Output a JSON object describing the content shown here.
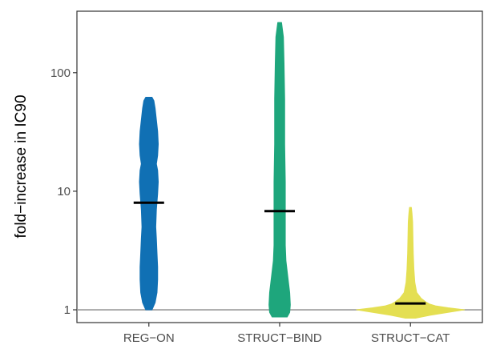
{
  "chart_data": {
    "type": "violin",
    "title": "",
    "xlabel": "",
    "ylabel": "fold−increase in IC90",
    "y_scale": "log10",
    "ylim": [
      0.78,
      330
    ],
    "y_ticks": [
      {
        "value": 1,
        "label": "1"
      },
      {
        "value": 10,
        "label": "10"
      },
      {
        "value": 100,
        "label": "100"
      }
    ],
    "reference_line": {
      "y": 1,
      "color": "#999999"
    },
    "grid": false,
    "legend": "none",
    "categories": [
      "REG−ON",
      "STRUCT−BIND",
      "STRUCT−CAT"
    ],
    "colors": [
      "#1070b4",
      "#1ea67c",
      "#e4df52"
    ],
    "series": [
      {
        "median": 8.0,
        "min": 1.0,
        "max": 62,
        "profile": [
          [
            1.0,
            0.05
          ],
          [
            1.15,
            0.1
          ],
          [
            1.4,
            0.13
          ],
          [
            1.8,
            0.14
          ],
          [
            2.3,
            0.14
          ],
          [
            3.0,
            0.13
          ],
          [
            4.0,
            0.12
          ],
          [
            5.0,
            0.11
          ],
          [
            7.0,
            0.12
          ],
          [
            9.5,
            0.14
          ],
          [
            12,
            0.15
          ],
          [
            15,
            0.14
          ],
          [
            17,
            0.12
          ],
          [
            20,
            0.14
          ],
          [
            25,
            0.15
          ],
          [
            32,
            0.14
          ],
          [
            40,
            0.12
          ],
          [
            50,
            0.1
          ],
          [
            58,
            0.08
          ],
          [
            62,
            0.05
          ]
        ]
      },
      {
        "median": 6.8,
        "min": 0.87,
        "max": 265,
        "profile": [
          [
            0.87,
            0.12
          ],
          [
            0.95,
            0.16
          ],
          [
            1.1,
            0.17
          ],
          [
            1.4,
            0.16
          ],
          [
            1.9,
            0.13
          ],
          [
            2.6,
            0.1
          ],
          [
            3.5,
            0.09
          ],
          [
            6,
            0.09
          ],
          [
            12,
            0.09
          ],
          [
            25,
            0.08
          ],
          [
            60,
            0.08
          ],
          [
            120,
            0.07
          ],
          [
            200,
            0.06
          ],
          [
            265,
            0.03
          ]
        ]
      },
      {
        "median": 1.13,
        "min": 0.85,
        "max": 7.3,
        "profile": [
          [
            0.85,
            0.08
          ],
          [
            0.9,
            0.32
          ],
          [
            0.95,
            0.6
          ],
          [
            1.0,
            0.86
          ],
          [
            1.04,
            0.6
          ],
          [
            1.08,
            0.4
          ],
          [
            1.12,
            0.3
          ],
          [
            1.17,
            0.24
          ],
          [
            1.25,
            0.17
          ],
          [
            1.4,
            0.1
          ],
          [
            1.7,
            0.07
          ],
          [
            2.2,
            0.055
          ],
          [
            3.0,
            0.045
          ],
          [
            4.0,
            0.04
          ],
          [
            5.5,
            0.035
          ],
          [
            6.5,
            0.025
          ],
          [
            7.3,
            0.015
          ]
        ]
      }
    ]
  }
}
